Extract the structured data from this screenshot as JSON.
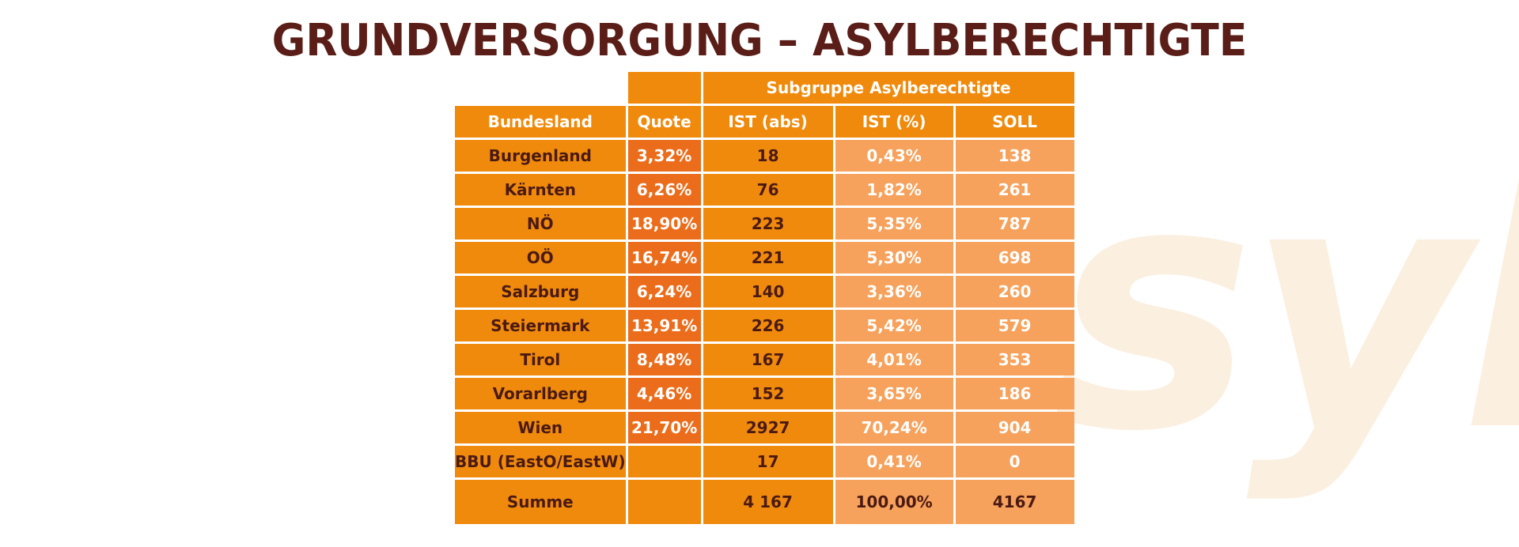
{
  "watermark": "syl",
  "title": "GRUNDVERSORGUNG – ASYLBERECHTIGTE",
  "table": {
    "group_header": "Subgruppe Asylberechtigte",
    "columns": [
      "Bundesland",
      "Quote",
      "IST (abs)",
      "IST (%)",
      "SOLL"
    ],
    "rows": [
      {
        "land": "Burgenland",
        "quote": "3,32%",
        "ist_abs": "18",
        "ist_pct": "0,43%",
        "soll": "138"
      },
      {
        "land": "Kärnten",
        "quote": "6,26%",
        "ist_abs": "76",
        "ist_pct": "1,82%",
        "soll": "261"
      },
      {
        "land": "NÖ",
        "quote": "18,90%",
        "ist_abs": "223",
        "ist_pct": "5,35%",
        "soll": "787"
      },
      {
        "land": "OÖ",
        "quote": "16,74%",
        "ist_abs": "221",
        "ist_pct": "5,30%",
        "soll": "698"
      },
      {
        "land": "Salzburg",
        "quote": "6,24%",
        "ist_abs": "140",
        "ist_pct": "3,36%",
        "soll": "260"
      },
      {
        "land": "Steiermark",
        "quote": "13,91%",
        "ist_abs": "226",
        "ist_pct": "5,42%",
        "soll": "579"
      },
      {
        "land": "Tirol",
        "quote": "8,48%",
        "ist_abs": "167",
        "ist_pct": "4,01%",
        "soll": "353"
      },
      {
        "land": "Vorarlberg",
        "quote": "4,46%",
        "ist_abs": "152",
        "ist_pct": "3,65%",
        "soll": "186"
      },
      {
        "land": "Wien",
        "quote": "21,70%",
        "ist_abs": "2927",
        "ist_pct": "70,24%",
        "soll": "904"
      },
      {
        "land": "BBU (EastO/EastW)",
        "quote": "",
        "ist_abs": "17",
        "ist_pct": "0,41%",
        "soll": "0"
      }
    ],
    "total": {
      "land": "Summe",
      "quote": "",
      "ist_abs": "4 167",
      "ist_pct": "100,00%",
      "soll": "4167"
    }
  },
  "colors": {
    "title": "#5a1d17",
    "orange": "#f08a0c",
    "quote_orange": "#eb6d1c",
    "light_orange": "#f7a25c",
    "dark_text": "#4a1a12",
    "watermark": "#fbefe0"
  }
}
